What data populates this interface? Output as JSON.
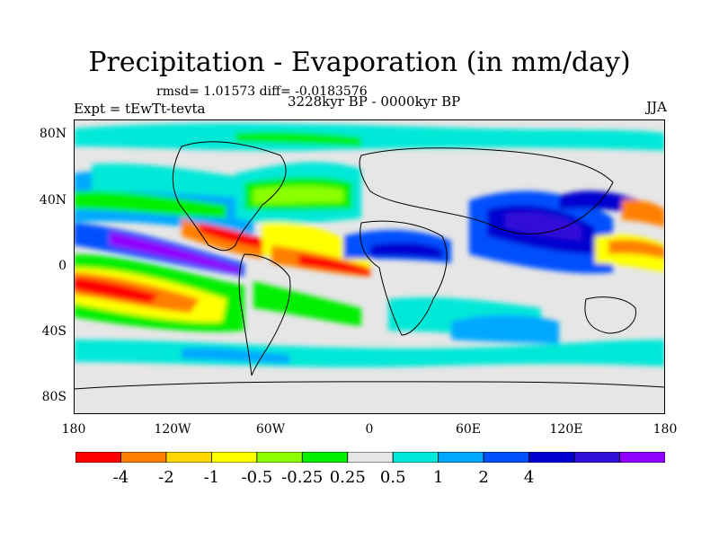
{
  "title": "Precipitation - Evaporation (in mm/day)",
  "stats": "rmsd= 1.01573 diff= -0.0183576",
  "experiment": "Expt = tEwTt-tevta",
  "period": "3228kyr BP - 0000kyr BP",
  "season": "JJA",
  "lat_labels": [
    "80N",
    "40N",
    "0",
    "40S",
    "80S"
  ],
  "lon_labels": [
    "180",
    "120W",
    "60W",
    "0",
    "60E",
    "120E",
    "180"
  ],
  "colorbar": {
    "labels": [
      "-4",
      "-2",
      "-1",
      "-0.5",
      "-0.25",
      "0.25",
      "0.5",
      "1",
      "2",
      "4"
    ],
    "colors": [
      "#ff0000",
      "#ff8000",
      "#ffd700",
      "#ffff00",
      "#8cff00",
      "#00f000",
      "#e6e6e6",
      "#00e8d8",
      "#00a8ff",
      "#0050ff",
      "#0000d0",
      "#3010d8",
      "#9000ff"
    ]
  },
  "map_background": "#e6e6e6"
}
